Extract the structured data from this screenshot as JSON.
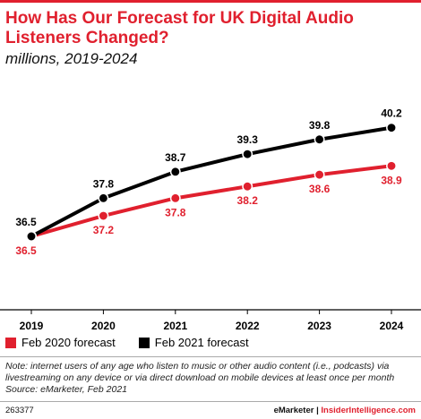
{
  "header": {
    "title": "How Has Our Forecast for UK Digital Audio Listeners Changed?",
    "subtitle": "millions, 2019-2024"
  },
  "colors": {
    "accent": "#e0202e",
    "series_2020": "#e0202e",
    "series_2021": "#000000"
  },
  "chart_data": {
    "type": "line",
    "x": [
      "2019",
      "2020",
      "2021",
      "2022",
      "2023",
      "2024"
    ],
    "series": [
      {
        "name": "Feb 2020 forecast",
        "values": [
          36.5,
          37.2,
          37.8,
          38.2,
          38.6,
          38.9
        ]
      },
      {
        "name": "Feb 2021 forecast",
        "values": [
          36.5,
          37.8,
          38.7,
          39.3,
          39.8,
          40.2
        ]
      }
    ],
    "data_labels": {
      "Feb 2020 forecast": [
        "36.5",
        "37.2",
        "37.8",
        "38.2",
        "38.6",
        "38.9"
      ],
      "Feb 2021 forecast": [
        "36.5",
        "37.8",
        "38.7",
        "39.3",
        "39.8",
        "40.2"
      ]
    },
    "title": "How Has Our Forecast for UK Digital Audio Listeners Changed?",
    "subtitle": "millions, 2019-2024",
    "xlabel": "",
    "ylabel": "",
    "ylim": [
      34,
      41.5
    ],
    "grid": false,
    "legend": "bottom-left"
  },
  "legend": {
    "items": [
      {
        "label": "Feb 2020 forecast"
      },
      {
        "label": "Feb 2021 forecast"
      }
    ]
  },
  "note": {
    "text": "Note: internet users of any age who listen to music or other audio content (i.e., podcasts) via livestreaming on any device or via direct download on mobile devices at least once per month",
    "source": "Source: eMarketer, Feb 2021"
  },
  "footer": {
    "id": "263377",
    "brand_left": "eMarketer",
    "separator": "|",
    "brand_right": "InsiderIntelligence.com"
  }
}
